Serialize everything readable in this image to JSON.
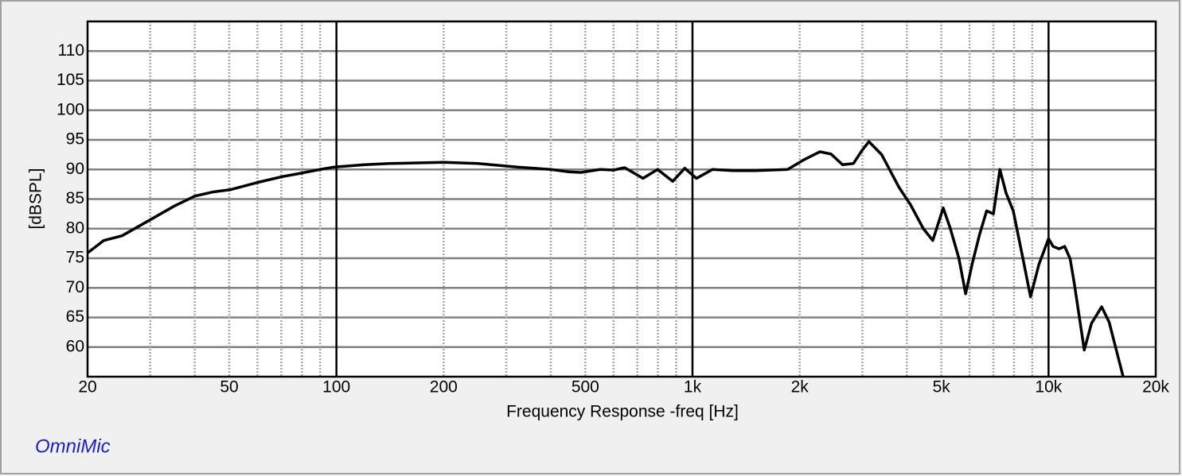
{
  "chart_data": {
    "type": "line",
    "x_label": "Frequency Response -freq [Hz]",
    "y_label": "[dBSPL]",
    "watermark": "OmniMic",
    "xscale": "log",
    "xlim": [
      20,
      20000
    ],
    "ylim": [
      55,
      115
    ],
    "xticks": [
      20,
      50,
      100,
      200,
      500,
      {
        "value": 1000,
        "label": "1k"
      },
      {
        "value": 2000,
        "label": "2k"
      },
      {
        "value": 5000,
        "label": "5k"
      },
      {
        "value": 10000,
        "label": "10k"
      },
      {
        "value": 20000,
        "label": "20k"
      }
    ],
    "yticks": [
      60,
      65,
      70,
      75,
      80,
      85,
      90,
      95,
      100,
      105,
      110
    ],
    "x_major_grid": [
      100,
      1000,
      10000
    ],
    "x_minor_grid": [
      30,
      40,
      50,
      60,
      70,
      80,
      90,
      200,
      300,
      400,
      500,
      600,
      700,
      800,
      900,
      2000,
      3000,
      4000,
      5000,
      6000,
      7000,
      8000,
      9000
    ],
    "grid": true,
    "series": [
      {
        "name": "Frequency Response",
        "color": "#000000",
        "x": [
          20,
          22.2,
          25,
          30.2,
          35,
          40,
          45,
          50.5,
          60,
          70.6,
          80,
          90,
          98.6,
          120,
          141,
          200,
          250,
          322,
          400,
          450,
          486,
          550,
          600,
          645,
          726,
          798,
          880,
          951,
          1026,
          1138,
          1300,
          1500,
          1850,
          2050,
          2280,
          2450,
          2640,
          2830,
          3000,
          3130,
          3400,
          3800,
          4100,
          4450,
          4730,
          5060,
          5300,
          5600,
          5850,
          6100,
          6400,
          6700,
          7000,
          7300,
          7600,
          7960,
          8470,
          8900,
          9400,
          10000,
          10300,
          10700,
          11100,
          11500,
          11800,
          12600,
          13200,
          14100,
          14800,
          16200
        ],
        "values": [
          75.9,
          78,
          78.8,
          81.6,
          83.8,
          85.5,
          86.2,
          86.6,
          87.8,
          88.8,
          89.4,
          90,
          90.4,
          90.8,
          91,
          91.2,
          91,
          90.4,
          90,
          89.6,
          89.5,
          90,
          89.9,
          90.3,
          88.5,
          90,
          88,
          90.2,
          88.5,
          90,
          89.8,
          89.8,
          90,
          91.6,
          93,
          92.6,
          90.8,
          91,
          93.3,
          94.7,
          92.5,
          87,
          84,
          80,
          78,
          83.5,
          80,
          75,
          69,
          74,
          79,
          83,
          82.5,
          90,
          86,
          83,
          75,
          68.5,
          74,
          78.3,
          77,
          76.6,
          77,
          74.9,
          70.9,
          59.5,
          64,
          66.8,
          64.2,
          55
        ]
      }
    ]
  }
}
